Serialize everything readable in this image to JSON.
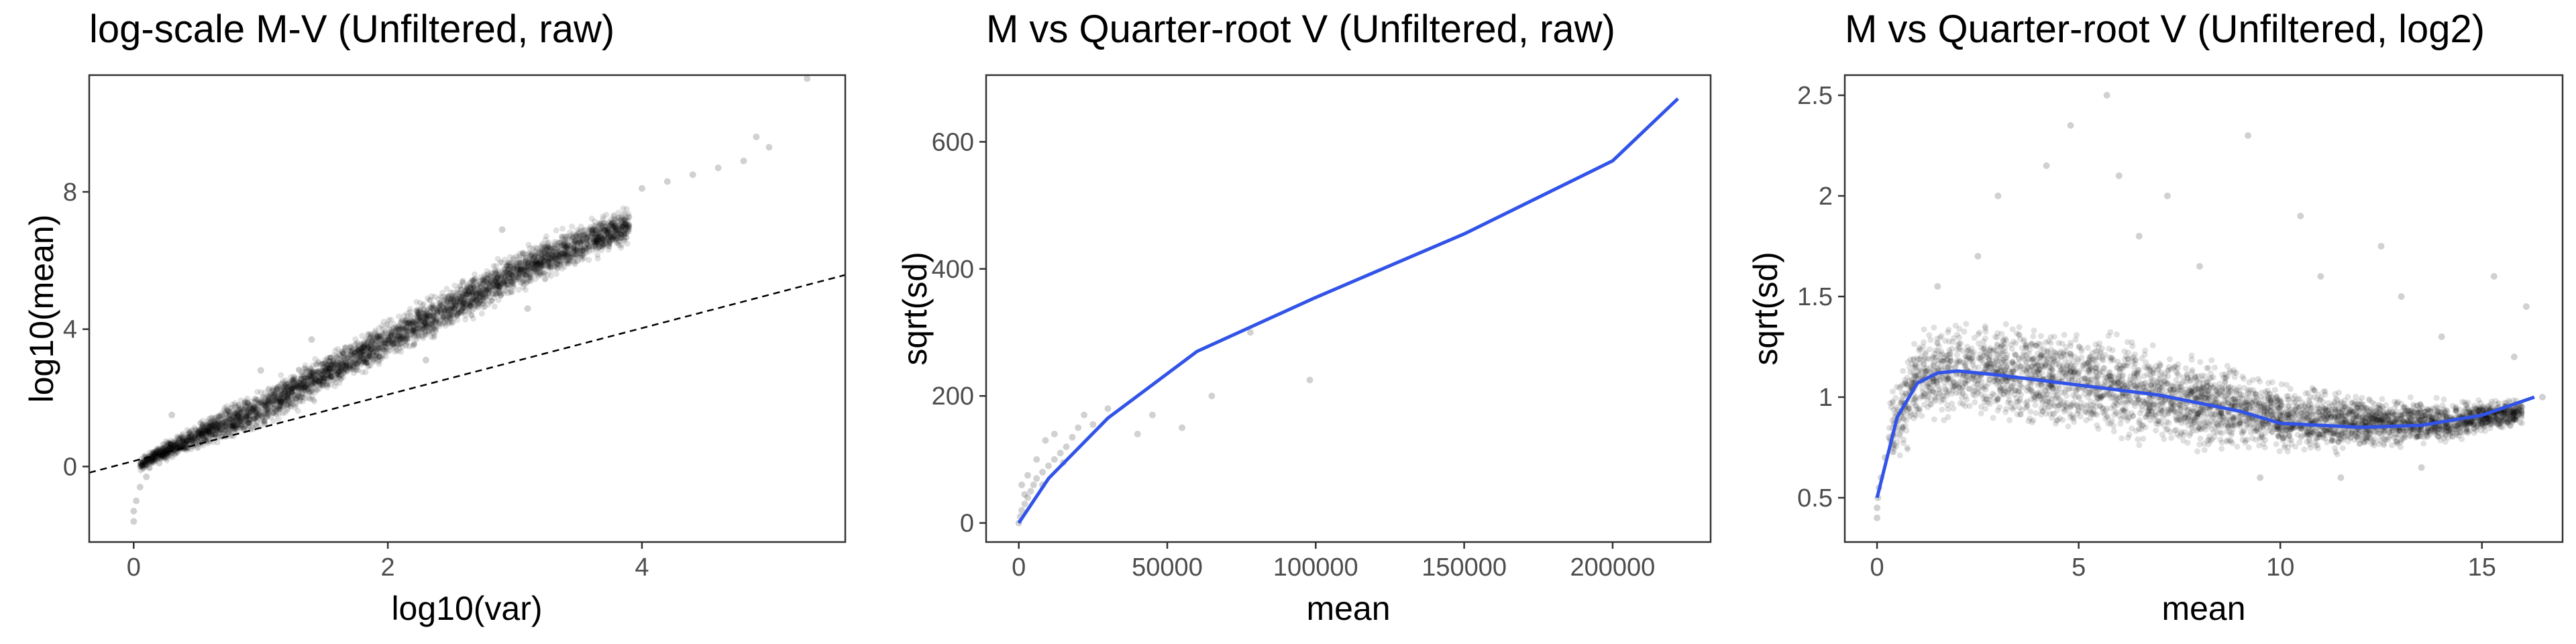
{
  "chart_data": [
    {
      "type": "scatter",
      "title": "log-scale M-V (Unfiltered, raw)",
      "xlabel": "log10(var)",
      "ylabel": "log10(mean)",
      "xlim": [
        -0.35,
        5.6
      ],
      "ylim": [
        -2.2,
        11.4
      ],
      "xticks": [
        0,
        2,
        4
      ],
      "yticks": [
        0,
        4,
        8
      ],
      "grid": false,
      "reference_line": {
        "style": "dashed",
        "x": [
          -0.35,
          5.6
        ],
        "y": [
          -0.18,
          5.58
        ]
      },
      "band": {
        "x": [
          0.05,
          0.3,
          0.6,
          1.0,
          1.5,
          2.0,
          2.5,
          3.0,
          3.5,
          3.9
        ],
        "y_low": [
          -0.2,
          0.2,
          0.5,
          1.0,
          2.0,
          3.0,
          3.9,
          4.9,
          5.7,
          6.4
        ],
        "y_high": [
          0.3,
          0.9,
          1.6,
          2.4,
          3.4,
          4.4,
          5.4,
          6.4,
          7.2,
          7.7
        ]
      },
      "points": [
        [
          0.0,
          -1.6
        ],
        [
          0.0,
          -1.3
        ],
        [
          0.02,
          -1.0
        ],
        [
          0.05,
          -0.6
        ],
        [
          0.1,
          -0.3
        ],
        [
          0.2,
          0.1
        ],
        [
          4.0,
          8.1
        ],
        [
          4.2,
          8.3
        ],
        [
          4.4,
          8.5
        ],
        [
          4.6,
          8.7
        ],
        [
          4.8,
          8.9
        ],
        [
          5.0,
          9.3
        ],
        [
          4.9,
          9.6
        ],
        [
          5.3,
          11.3
        ],
        [
          1.0,
          2.8
        ],
        [
          1.4,
          3.7
        ],
        [
          2.3,
          3.1
        ],
        [
          3.1,
          4.6
        ],
        [
          2.9,
          6.9
        ],
        [
          0.3,
          1.5
        ]
      ]
    },
    {
      "type": "scatter",
      "title": "M vs Quarter-root V (Unfiltered, raw)",
      "xlabel": "mean",
      "ylabel": "sqrt(sd)",
      "xlim": [
        -11000,
        233000
      ],
      "ylim": [
        -30,
        705
      ],
      "xticks": [
        0,
        50000,
        100000,
        150000,
        200000
      ],
      "yticks": [
        0,
        200,
        400,
        600
      ],
      "grid": false,
      "series": [
        {
          "name": "",
          "style": "smooth",
          "color": "#3153e8",
          "x": [
            0,
            10000,
            30000,
            60000,
            100000,
            150000,
            200000,
            222000
          ],
          "y": [
            0,
            70,
            165,
            270,
            355,
            455,
            570,
            668
          ]
        }
      ],
      "points": [
        [
          0,
          0
        ],
        [
          500,
          10
        ],
        [
          1000,
          20
        ],
        [
          2000,
          30
        ],
        [
          3000,
          40
        ],
        [
          4000,
          50
        ],
        [
          5000,
          60
        ],
        [
          6000,
          70
        ],
        [
          8000,
          80
        ],
        [
          10000,
          90
        ],
        [
          12000,
          100
        ],
        [
          14000,
          110
        ],
        [
          16000,
          120
        ],
        [
          18000,
          135
        ],
        [
          20000,
          150
        ],
        [
          22000,
          170
        ],
        [
          25000,
          155
        ],
        [
          30000,
          180
        ],
        [
          40000,
          140
        ],
        [
          45000,
          170
        ],
        [
          55000,
          150
        ],
        [
          65000,
          200
        ],
        [
          78000,
          300
        ],
        [
          98000,
          225
        ],
        [
          1000,
          60
        ],
        [
          3000,
          75
        ],
        [
          6000,
          100
        ],
        [
          9000,
          130
        ],
        [
          12000,
          140
        ],
        [
          15000,
          95
        ],
        [
          8000,
          60
        ],
        [
          2000,
          45
        ]
      ]
    },
    {
      "type": "scatter",
      "title": "M vs Quarter-root V (Unfiltered, log2)",
      "xlabel": "mean",
      "ylabel": "sqrt(sd)",
      "xlim": [
        -0.8,
        17.0
      ],
      "ylim": [
        0.28,
        2.6
      ],
      "xticks": [
        0,
        5,
        10,
        15
      ],
      "yticks": [
        0.5,
        1.0,
        1.5,
        2.0,
        2.5
      ],
      "grid": false,
      "series": [
        {
          "name": "",
          "style": "smooth",
          "color": "#3153e8",
          "x": [
            0,
            0.5,
            1.0,
            1.5,
            2.0,
            3.0,
            5.0,
            7.0,
            9.0,
            10.0,
            12.0,
            13.5,
            15.0,
            16.3
          ],
          "y": [
            0.5,
            0.9,
            1.07,
            1.12,
            1.13,
            1.11,
            1.06,
            1.01,
            0.93,
            0.87,
            0.85,
            0.86,
            0.91,
            1.0
          ]
        }
      ],
      "band": {
        "x": [
          0.3,
          1.0,
          2.0,
          4.0,
          6.0,
          8.0,
          10.0,
          12.0,
          14.0,
          16.0
        ],
        "y_low": [
          0.55,
          0.8,
          0.85,
          0.8,
          0.75,
          0.7,
          0.7,
          0.7,
          0.75,
          0.85
        ],
        "y_high": [
          1.05,
          1.35,
          1.45,
          1.4,
          1.35,
          1.25,
          1.1,
          1.05,
          1.0,
          1.0
        ]
      },
      "points": [
        [
          0,
          0.4
        ],
        [
          0,
          0.45
        ],
        [
          0.02,
          0.5
        ],
        [
          0.05,
          0.55
        ],
        [
          0.1,
          0.6
        ],
        [
          0.2,
          0.7
        ],
        [
          0.3,
          0.8
        ],
        [
          5.7,
          2.5
        ],
        [
          4.8,
          2.35
        ],
        [
          9.2,
          2.3
        ],
        [
          4.2,
          2.15
        ],
        [
          6.0,
          2.1
        ],
        [
          3.0,
          2.0
        ],
        [
          7.2,
          2.0
        ],
        [
          10.5,
          1.9
        ],
        [
          12.5,
          1.75
        ],
        [
          15.3,
          1.6
        ],
        [
          16.1,
          1.45
        ],
        [
          2.5,
          1.7
        ],
        [
          8.0,
          1.65
        ],
        [
          11.0,
          1.6
        ],
        [
          13.0,
          1.5
        ],
        [
          1.5,
          1.55
        ],
        [
          6.5,
          1.8
        ],
        [
          14.0,
          1.3
        ],
        [
          15.8,
          1.2
        ],
        [
          16.5,
          1.0
        ],
        [
          9.5,
          0.6
        ],
        [
          11.5,
          0.6
        ],
        [
          13.5,
          0.65
        ]
      ]
    }
  ]
}
